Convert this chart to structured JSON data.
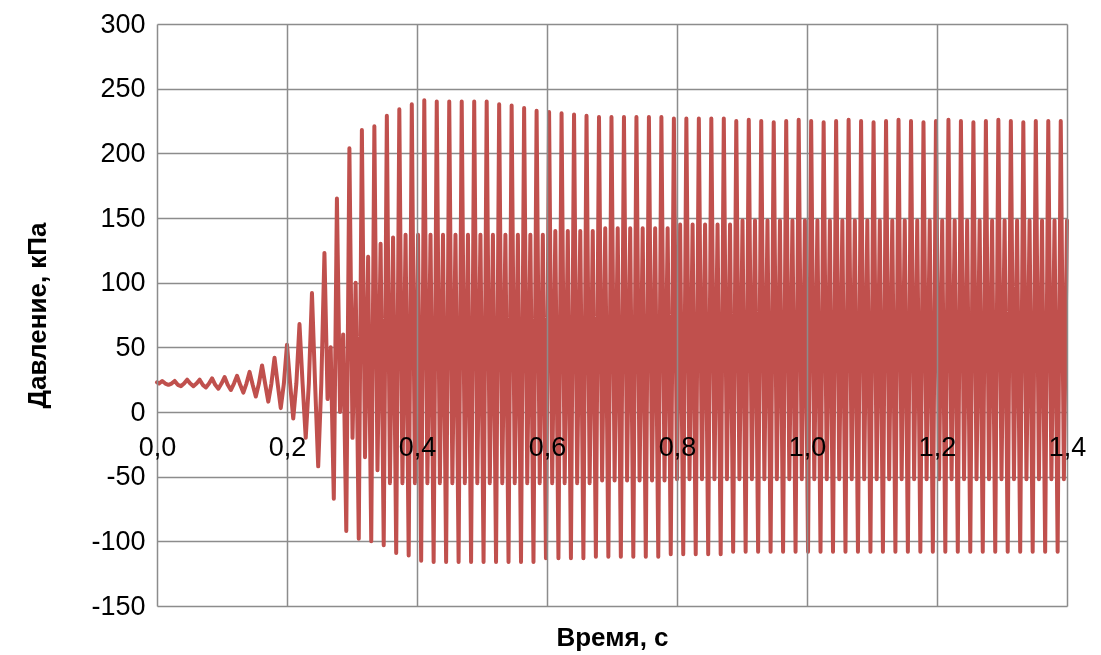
{
  "chart_data": {
    "type": "line",
    "xlabel": "Время, с",
    "ylabel": "Давление, кПа",
    "xlim": [
      0,
      1.4
    ],
    "ylim": [
      -150,
      300
    ],
    "xticks": [
      {
        "value": 0,
        "label": "0,0"
      },
      {
        "value": 0.2,
        "label": "0,2"
      },
      {
        "value": 0.4,
        "label": "0,4"
      },
      {
        "value": 0.6,
        "label": "0,6"
      },
      {
        "value": 0.8,
        "label": "0,8"
      },
      {
        "value": 1,
        "label": "1,0"
      },
      {
        "value": 1.2,
        "label": "1,2"
      },
      {
        "value": 1.4,
        "label": "1,4"
      }
    ],
    "yticks": [
      -150,
      -100,
      -50,
      0,
      50,
      100,
      150,
      200,
      250,
      300
    ],
    "grid": true,
    "x": [
      0,
      0.0032,
      0.008,
      0.0128,
      0.0176,
      0.0224,
      0.0272,
      0.032,
      0.0368,
      0.0416,
      0.0464,
      0.0512,
      0.056,
      0.0608,
      0.0656,
      0.0704,
      0.0752,
      0.08,
      0.0848,
      0.0896,
      0.0944,
      0.0992,
      0.104,
      0.1088,
      0.1136,
      0.1184,
      0.1232,
      0.128,
      0.1328,
      0.1376,
      0.1424,
      0.1472,
      0.152,
      0.1568,
      0.1616,
      0.1664,
      0.1712,
      0.176,
      0.1808,
      0.1856,
      0.1904,
      0.1952,
      0.2,
      0.2048,
      0.2096,
      0.2144,
      0.2192,
      0.224,
      0.2288,
      0.2336,
      0.2384,
      0.2432,
      0.248,
      0.2528,
      0.2576,
      0.2624,
      0.2672,
      0.272,
      0.2768,
      0.2816,
      0.2864,
      0.2912,
      0.296,
      0.3008,
      0.3056,
      0.3104,
      0.3152,
      0.32,
      0.3248,
      0.3296,
      0.3344,
      0.3392,
      0.344,
      0.3488,
      0.3536,
      0.3584,
      0.3632,
      0.368,
      0.3728,
      0.3776,
      0.3824,
      0.3872,
      0.392,
      0.3968,
      0.4016,
      0.4064,
      0.4112,
      0.416,
      0.4208,
      0.4256,
      0.4304,
      0.4352,
      0.44,
      0.4448,
      0.4496,
      0.4544,
      0.4592,
      0.464,
      0.4688,
      0.4736,
      0.4784,
      0.4832,
      0.488,
      0.4928,
      0.4976,
      0.5024,
      0.5072,
      0.512,
      0.5168,
      0.5216,
      0.5264,
      0.5312,
      0.536,
      0.5408,
      0.5456,
      0.5504,
      0.5552,
      0.56,
      0.5648,
      0.5696,
      0.5744,
      0.5792,
      0.584,
      0.5888,
      0.5936,
      0.5984,
      0.6032,
      0.608,
      0.6128,
      0.6176,
      0.6224,
      0.6272,
      0.632,
      0.6368,
      0.6416,
      0.6464,
      0.6512,
      0.656,
      0.6608,
      0.6656,
      0.6704,
      0.6752,
      0.68,
      0.6848,
      0.6896,
      0.6944,
      0.6992,
      0.704,
      0.7088,
      0.7136,
      0.7184,
      0.7232,
      0.728,
      0.7328,
      0.7376,
      0.7424,
      0.7472,
      0.752,
      0.7568,
      0.7616,
      0.7664,
      0.7712,
      0.776,
      0.7808,
      0.7856,
      0.7904,
      0.7952,
      0.8,
      0.8048,
      0.8096,
      0.8144,
      0.8192,
      0.824,
      0.8288,
      0.8336,
      0.8384,
      0.8432,
      0.848,
      0.8528,
      0.8576,
      0.8624,
      0.8672,
      0.872,
      0.8768,
      0.8816,
      0.8864,
      0.8912,
      0.896,
      0.9008,
      0.9056,
      0.9104,
      0.9152,
      0.92,
      0.9248,
      0.9296,
      0.9344,
      0.9392,
      0.944,
      0.9488,
      0.9536,
      0.9584,
      0.9632,
      0.968,
      0.9728,
      0.9776,
      0.9824,
      0.9872,
      0.992,
      0.9968,
      1.0016,
      1.0064,
      1.0112,
      1.016,
      1.0208,
      1.0256,
      1.0304,
      1.0352,
      1.04,
      1.0448,
      1.0496,
      1.0544,
      1.0592,
      1.064,
      1.0688,
      1.0736,
      1.0784,
      1.0832,
      1.088,
      1.0928,
      1.0976,
      1.1024,
      1.1072,
      1.112,
      1.1168,
      1.1216,
      1.1264,
      1.1312,
      1.136,
      1.1408,
      1.1456,
      1.1504,
      1.1552,
      1.16,
      1.1648,
      1.1696,
      1.1744,
      1.1792,
      1.184,
      1.1888,
      1.1936,
      1.1984,
      1.2032,
      1.208,
      1.2128,
      1.2176,
      1.2224,
      1.2272,
      1.232,
      1.2368,
      1.2416,
      1.2464,
      1.2512,
      1.256,
      1.2608,
      1.2656,
      1.2704,
      1.2752,
      1.28,
      1.2848,
      1.2896,
      1.2944,
      1.2992,
      1.304,
      1.3088,
      1.3136,
      1.3184,
      1.3232,
      1.328,
      1.3328,
      1.3376,
      1.3424,
      1.3472,
      1.352,
      1.3568,
      1.3616,
      1.3664,
      1.3712,
      1.376,
      1.3808,
      1.3856,
      1.3904,
      1.3952,
      1.4
    ],
    "series": [
      {
        "color": "#c0504d",
        "values": [
          23,
          22,
          24,
          22,
          21,
          22,
          24,
          21,
          20,
          22,
          25,
          22,
          20,
          22,
          25,
          21,
          19,
          22,
          26,
          21,
          18,
          22,
          27,
          21,
          17,
          22,
          28,
          21,
          15,
          22,
          31,
          21,
          12,
          22,
          36,
          22,
          8,
          22,
          42,
          22,
          3,
          22,
          52,
          22,
          -5,
          22,
          68,
          22,
          -20,
          22,
          92,
          22,
          -42,
          22,
          123,
          10,
          50,
          -67,
          165,
          0,
          60,
          -92,
          204,
          -20,
          100,
          -98,
          218,
          -35,
          120,
          -100,
          221,
          -45,
          130,
          -103,
          229,
          -55,
          135,
          -109,
          234,
          -55,
          137,
          -111,
          238,
          -55,
          137,
          -115,
          241,
          -55,
          137,
          -116,
          240,
          -55,
          137,
          -116,
          240,
          -55,
          137,
          -116,
          240,
          -55,
          137,
          -116,
          240,
          -55,
          137,
          -116,
          240,
          -55,
          137,
          -116,
          238,
          -55,
          137,
          -116,
          237,
          -55,
          137,
          -116,
          235,
          -55,
          137,
          -116,
          233,
          -55,
          137,
          -113,
          232,
          -55,
          140,
          -113,
          231,
          -55,
          140,
          -113,
          230,
          -55,
          140,
          -113,
          229,
          -55,
          140,
          -112,
          228,
          -53,
          142,
          -112,
          228,
          -53,
          142,
          -112,
          228,
          -53,
          142,
          -112,
          228,
          -53,
          142,
          -112,
          228,
          -53,
          142,
          -112,
          228,
          -53,
          142,
          -110,
          227,
          -52,
          145,
          -110,
          227,
          -52,
          145,
          -110,
          227,
          -52,
          145,
          -110,
          227,
          -52,
          145,
          -110,
          227,
          -52,
          145,
          -108,
          225,
          -52,
          148,
          -108,
          226,
          -52,
          148,
          -108,
          225,
          -52,
          148,
          -108,
          224,
          -52,
          148,
          -108,
          225,
          -52,
          148,
          -108,
          226,
          -52,
          148,
          -108,
          225,
          -52,
          148,
          -108,
          224,
          -52,
          148,
          -108,
          225,
          -52,
          148,
          -108,
          226,
          -52,
          148,
          -108,
          225,
          -52,
          148,
          -108,
          224,
          -52,
          148,
          -108,
          225,
          -52,
          148,
          -108,
          226,
          -52,
          148,
          -108,
          225,
          -52,
          148,
          -108,
          224,
          -52,
          148,
          -108,
          225,
          -52,
          148,
          -108,
          226,
          -52,
          148,
          -108,
          225,
          -52,
          148,
          -108,
          224,
          -52,
          148,
          -108,
          225,
          -52,
          148,
          -108,
          226,
          -52,
          148,
          -108,
          225,
          -52,
          148,
          -108,
          224,
          -52,
          148,
          -108,
          225,
          -52,
          148,
          -108,
          225,
          -52,
          148,
          -108,
          225,
          -52,
          148
        ]
      }
    ]
  }
}
